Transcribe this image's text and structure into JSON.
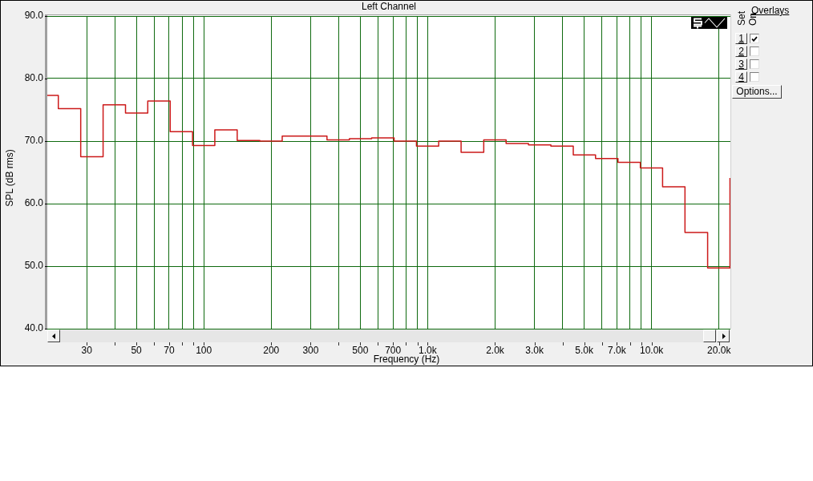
{
  "chart_data": {
    "type": "step",
    "title": "Left Channel",
    "xlabel": "Frequency (Hz)",
    "ylabel": "SPL (dB rms)",
    "x": [
      20,
      22.4,
      28.2,
      35.5,
      44.7,
      56.2,
      70.8,
      89.1,
      112,
      141,
      178,
      224,
      282,
      355,
      447,
      562,
      708,
      891,
      1120,
      1410,
      1780,
      2240,
      2820,
      3550,
      4470,
      5620,
      7080,
      8910,
      11200,
      14100,
      17800,
      22400
    ],
    "values": [
      77.3,
      75.2,
      67.5,
      75.8,
      74.5,
      76.4,
      71.5,
      69.3,
      71.8,
      70.1,
      70.0,
      70.8,
      70.8,
      70.2,
      70.4,
      70.5,
      70.0,
      69.2,
      70.0,
      68.2,
      70.2,
      69.6,
      69.4,
      69.2,
      67.8,
      67.2,
      66.6,
      65.7,
      62.7,
      55.4,
      49.7,
      64.1
    ],
    "color": "#cc1a1a",
    "log": "x",
    "xlim": [
      20,
      22500
    ],
    "ylim": [
      40,
      90
    ],
    "xticks": [
      30,
      {
        "value": 40,
        "label": null
      },
      50,
      {
        "value": 60,
        "label": null
      },
      70,
      {
        "value": 80,
        "label": null
      },
      {
        "value": 90,
        "label": null
      },
      100,
      200,
      300,
      {
        "value": 400,
        "label": null
      },
      500,
      {
        "value": 600,
        "label": null
      },
      700,
      {
        "value": 800,
        "label": null
      },
      {
        "value": 900,
        "label": null
      },
      {
        "value": 1000,
        "label": "1.0k"
      },
      {
        "value": 2000,
        "label": "2.0k"
      },
      {
        "value": 3000,
        "label": "3.0k"
      },
      {
        "value": 4000,
        "label": null
      },
      {
        "value": 5000,
        "label": "5.0k"
      },
      {
        "value": 6000,
        "label": null
      },
      {
        "value": 7000,
        "label": "7.0k"
      },
      {
        "value": 8000,
        "label": null
      },
      {
        "value": 9000,
        "label": null
      },
      {
        "value": 10000,
        "label": "10.0k"
      },
      {
        "value": 20000,
        "label": "20.0k"
      }
    ],
    "yticks": [
      {
        "value": 40,
        "label": "40.0"
      },
      {
        "value": 50,
        "label": "50.0"
      },
      {
        "value": 60,
        "label": "60.0"
      },
      {
        "value": 70,
        "label": "70.0"
      },
      {
        "value": 80,
        "label": "80.0"
      },
      {
        "value": 90,
        "label": "90.0"
      }
    ],
    "grid": true,
    "annotations": [
      "Overlays",
      "Set",
      "On",
      "1",
      "2",
      "3",
      "4",
      "Options..."
    ]
  }
}
